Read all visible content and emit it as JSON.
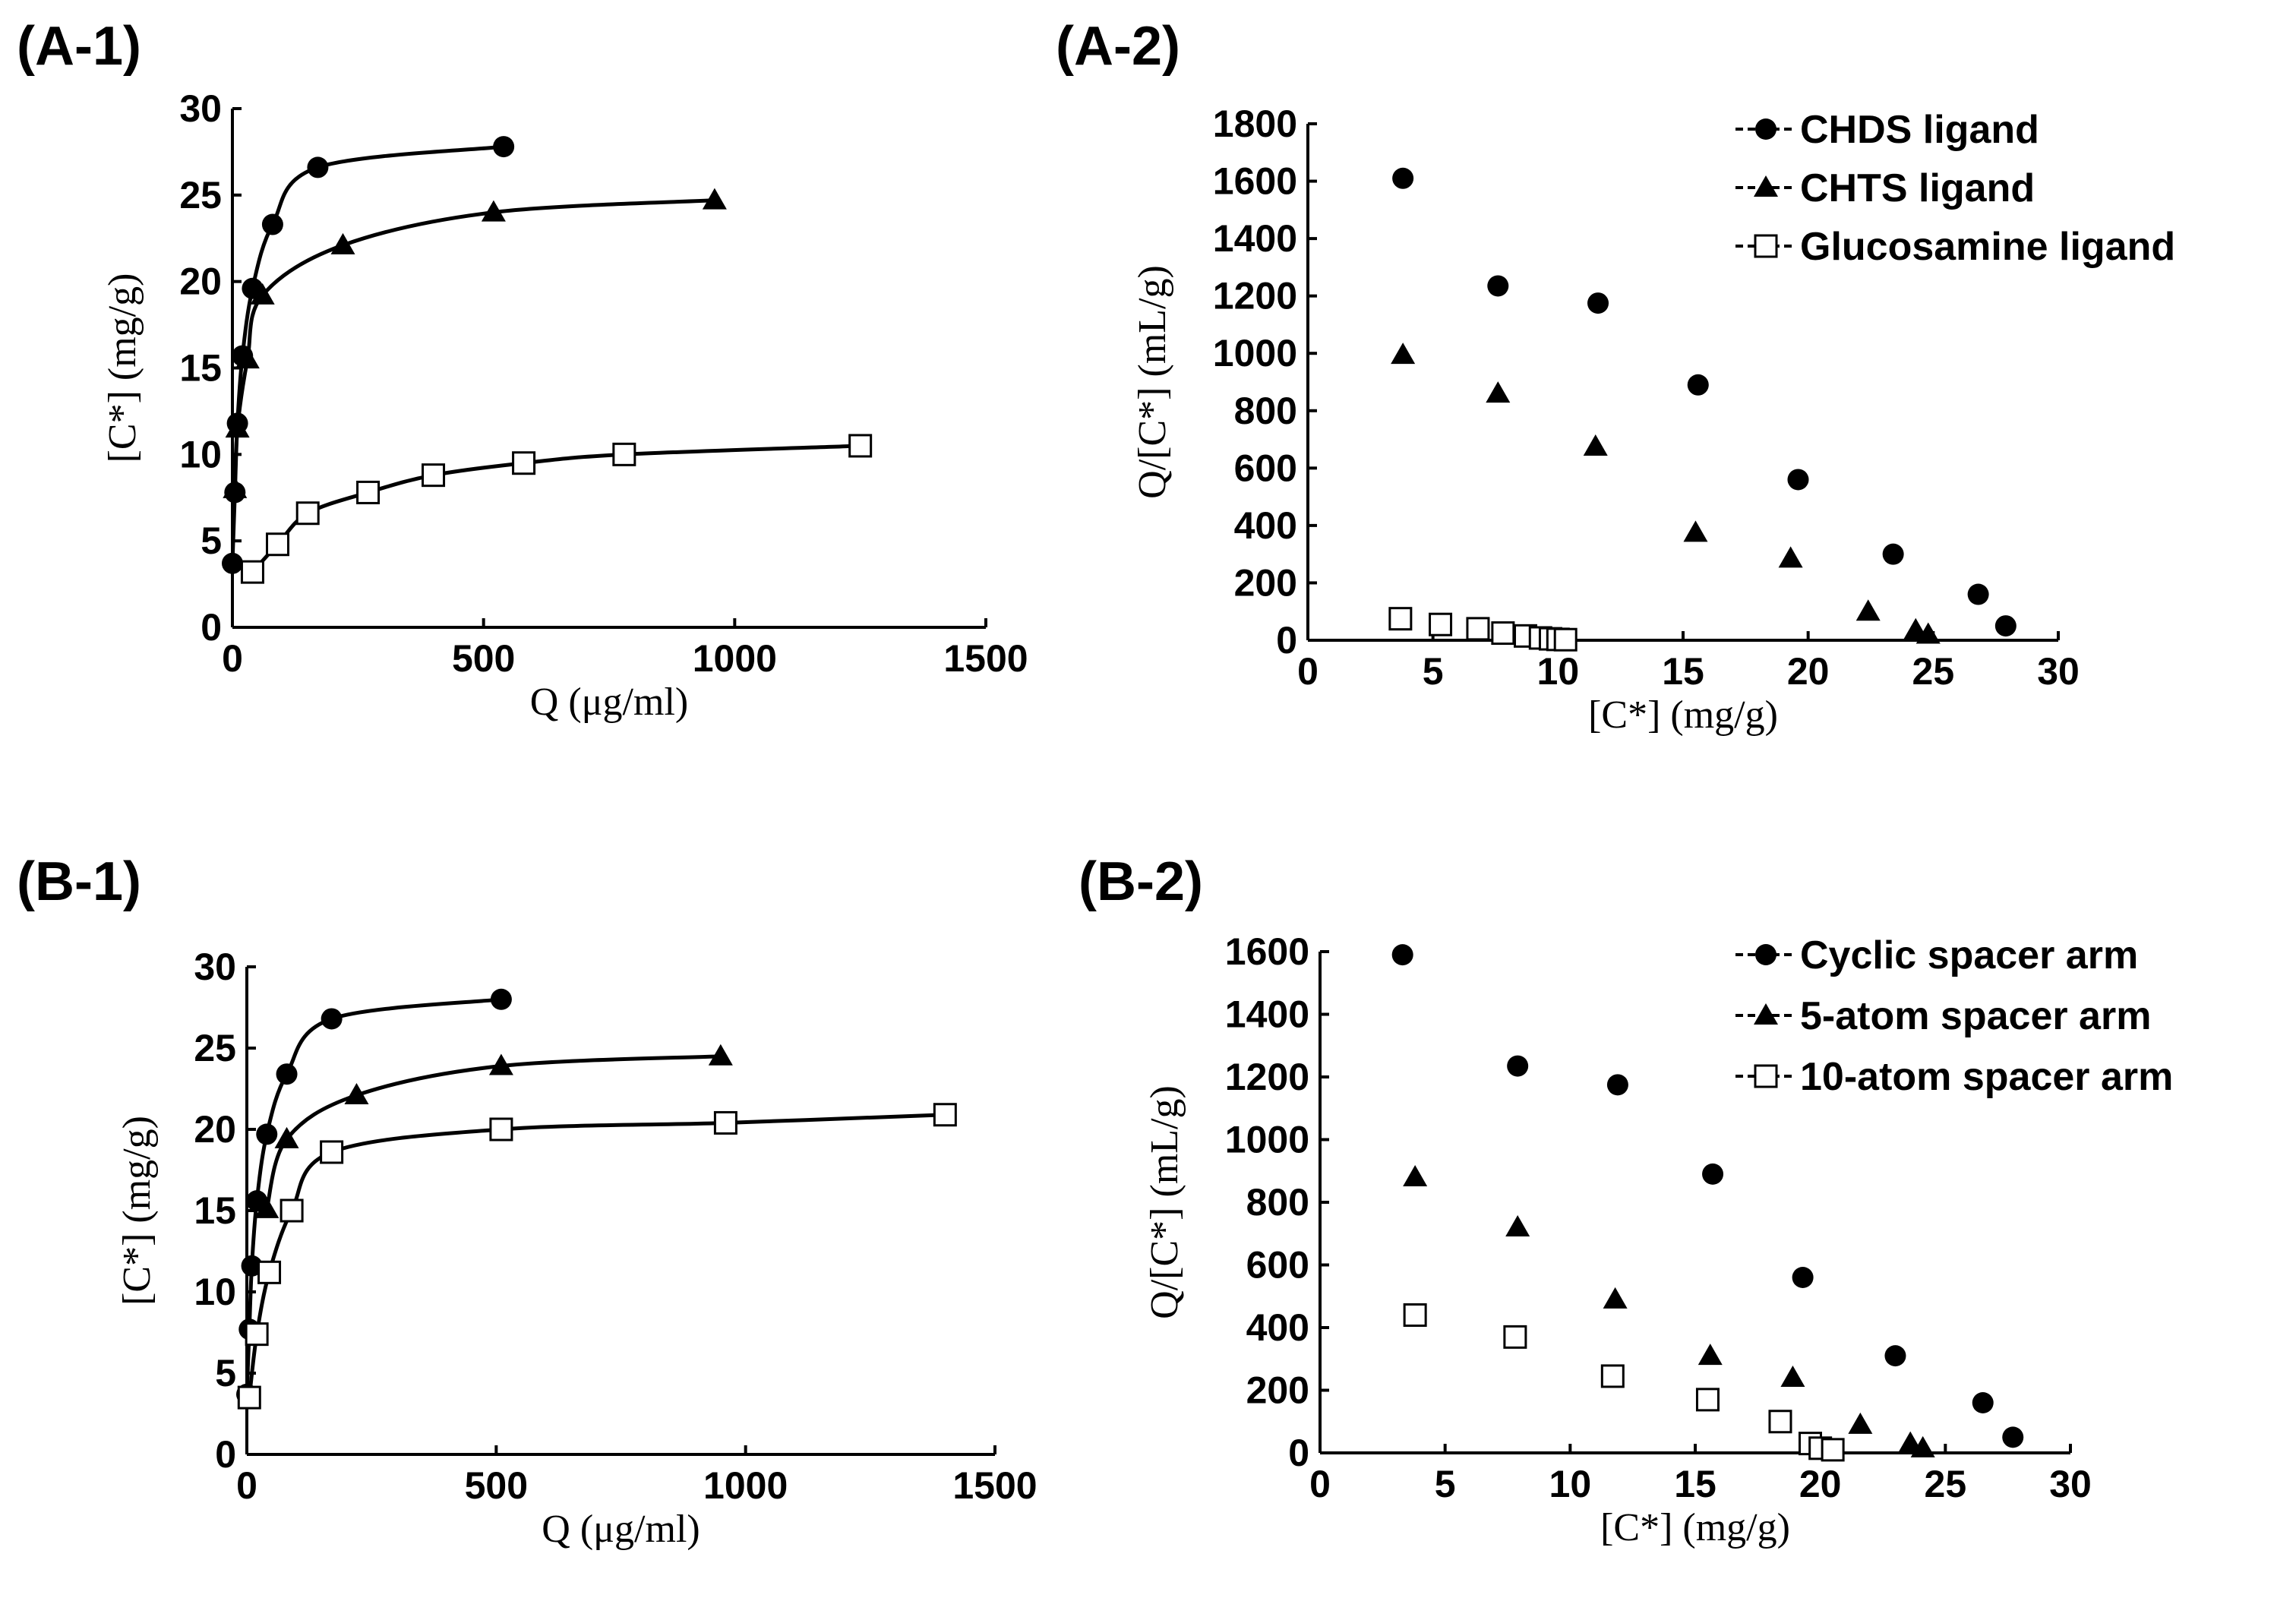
{
  "chart_data": [
    {
      "id": "A1",
      "panel_label": "(A-1)",
      "type": "scatter",
      "xlabel": "Q (μg/ml)",
      "ylabel": "[C*] (mg/g)",
      "xlim": [
        0,
        1500
      ],
      "ylim": [
        0,
        30
      ],
      "xticks": [
        0,
        500,
        1000,
        1500
      ],
      "yticks": [
        0,
        5,
        10,
        15,
        20,
        25,
        30
      ],
      "legend": null,
      "series": [
        {
          "name": "CHDS ligand",
          "marker": "circle",
          "connect": true,
          "x": [
            0,
            5,
            10,
            20,
            40,
            80,
            170,
            540
          ],
          "y": [
            3.7,
            7.8,
            11.8,
            15.7,
            19.6,
            23.3,
            26.6,
            27.8
          ]
        },
        {
          "name": "CHTS ligand",
          "marker": "triangle",
          "connect": true,
          "x": [
            5,
            10,
            30,
            60,
            220,
            520,
            960
          ],
          "y": [
            8.0,
            11.5,
            15.5,
            19.2,
            22.1,
            24.0,
            24.7
          ]
        },
        {
          "name": "Glucosamine ligand",
          "marker": "square",
          "connect": true,
          "x": [
            40,
            90,
            150,
            270,
            400,
            580,
            780,
            1250
          ],
          "y": [
            3.2,
            4.8,
            6.6,
            7.8,
            8.8,
            9.5,
            10.0,
            10.5
          ]
        }
      ]
    },
    {
      "id": "A2",
      "panel_label": "(A-2)",
      "type": "scatter",
      "xlabel": "[C*] (mg/g)",
      "ylabel": "Q/[C*] (mL/g)",
      "xlim": [
        0,
        30
      ],
      "ylim": [
        0,
        1800
      ],
      "xticks": [
        0,
        5,
        10,
        15,
        20,
        25,
        30
      ],
      "yticks": [
        0,
        200,
        400,
        600,
        800,
        1000,
        1200,
        1400,
        1600,
        1800
      ],
      "legend": [
        {
          "label": "CHDS ligand",
          "marker": "circle"
        },
        {
          "label": "CHTS ligand",
          "marker": "triangle"
        },
        {
          "label": "Glucosamine ligand",
          "marker": "square"
        }
      ],
      "series": [
        {
          "name": "CHDS ligand",
          "marker": "circle",
          "connect": false,
          "x": [
            3.8,
            7.6,
            11.6,
            15.6,
            19.6,
            23.4,
            26.8,
            27.9
          ],
          "y": [
            1610,
            1235,
            1175,
            890,
            560,
            300,
            160,
            50
          ]
        },
        {
          "name": "CHTS ligand",
          "marker": "triangle",
          "connect": false,
          "x": [
            3.8,
            7.6,
            11.5,
            15.5,
            19.3,
            22.4,
            24.3,
            24.8
          ],
          "y": [
            995,
            860,
            675,
            375,
            285,
            100,
            35,
            20
          ]
        },
        {
          "name": "Glucosamine ligand",
          "marker": "square",
          "connect": false,
          "x": [
            3.7,
            5.3,
            6.8,
            7.8,
            8.7,
            9.3,
            9.7,
            10.0,
            10.3
          ],
          "y": [
            75,
            55,
            40,
            25,
            15,
            8,
            5,
            3,
            2
          ]
        }
      ]
    },
    {
      "id": "B1",
      "panel_label": "(B-1)",
      "type": "scatter",
      "xlabel": "Q (μg/ml)",
      "ylabel": "[C*] (mg/g)",
      "xlim": [
        0,
        1500
      ],
      "ylim": [
        0,
        30
      ],
      "xticks": [
        0,
        500,
        1000,
        1500
      ],
      "yticks": [
        0,
        5,
        10,
        15,
        20,
        25,
        30
      ],
      "legend": null,
      "series": [
        {
          "name": "Cyclic spacer arm",
          "marker": "circle",
          "connect": true,
          "x": [
            0,
            5,
            10,
            20,
            40,
            80,
            170,
            510
          ],
          "y": [
            3.7,
            7.7,
            11.6,
            15.6,
            19.7,
            23.4,
            26.8,
            28.0
          ]
        },
        {
          "name": "5-atom spacer arm",
          "marker": "triangle",
          "connect": true,
          "x": [
            40,
            80,
            220,
            510,
            950
          ],
          "y": [
            15.1,
            19.4,
            22.1,
            23.9,
            24.5
          ]
        },
        {
          "name": "10-atom spacer arm",
          "marker": "square",
          "connect": true,
          "x": [
            5,
            20,
            45,
            90,
            170,
            510,
            960,
            1400
          ],
          "y": [
            3.5,
            7.4,
            11.2,
            15.0,
            18.6,
            20.0,
            20.4,
            20.9
          ]
        }
      ]
    },
    {
      "id": "B2",
      "panel_label": "(B-2)",
      "type": "scatter",
      "xlabel": "[C*] (mg/g)",
      "ylabel": "Q/[C*] (mL/g)",
      "xlim": [
        0,
        30
      ],
      "ylim": [
        0,
        1600
      ],
      "xticks": [
        0,
        5,
        10,
        15,
        20,
        25,
        30
      ],
      "yticks": [
        0,
        200,
        400,
        600,
        800,
        1000,
        1200,
        1400,
        1600
      ],
      "legend": [
        {
          "label": "Cyclic spacer arm",
          "marker": "circle"
        },
        {
          "label": "5-atom spacer arm",
          "marker": "triangle"
        },
        {
          "label": "10-atom spacer arm",
          "marker": "square"
        }
      ],
      "series": [
        {
          "name": "Cyclic spacer arm",
          "marker": "circle",
          "connect": false,
          "x": [
            3.3,
            7.9,
            11.9,
            15.7,
            19.3,
            23.0,
            26.5,
            27.7
          ],
          "y": [
            1590,
            1235,
            1175,
            890,
            560,
            310,
            160,
            50
          ]
        },
        {
          "name": "5-atom spacer arm",
          "marker": "triangle",
          "connect": false,
          "x": [
            3.8,
            7.9,
            11.8,
            15.6,
            18.9,
            21.6,
            23.6,
            24.1
          ],
          "y": [
            880,
            720,
            490,
            310,
            240,
            90,
            30,
            15
          ]
        },
        {
          "name": "10-atom spacer arm",
          "marker": "square",
          "connect": false,
          "x": [
            3.8,
            7.8,
            11.7,
            15.5,
            18.4,
            19.6,
            20.0,
            20.5
          ],
          "y": [
            440,
            370,
            245,
            170,
            100,
            30,
            15,
            10
          ]
        }
      ]
    }
  ]
}
